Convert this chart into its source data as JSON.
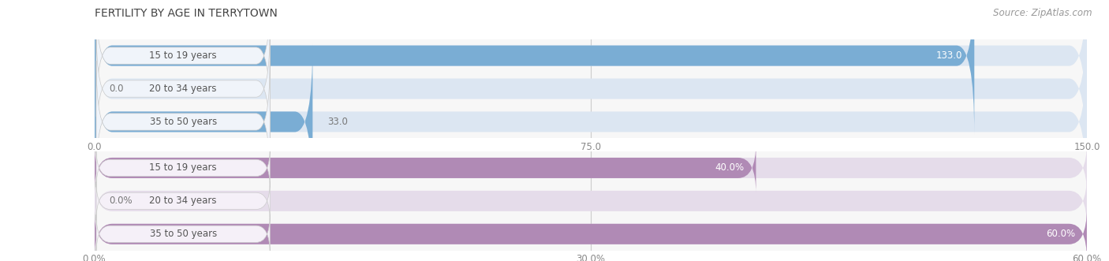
{
  "title": "FERTILITY BY AGE IN TERRYTOWN",
  "source": "Source: ZipAtlas.com",
  "top_section": {
    "categories": [
      "15 to 19 years",
      "20 to 34 years",
      "35 to 50 years"
    ],
    "values": [
      133.0,
      0.0,
      33.0
    ],
    "xlim": [
      0,
      150.0
    ],
    "xticks": [
      0.0,
      75.0,
      150.0
    ],
    "xtick_labels": [
      "0.0",
      "75.0",
      "150.0"
    ],
    "bar_color": "#7aadd4",
    "bar_bg_color": "#dce6f2",
    "label_pill_color": "#f0f4fa",
    "label_text_color": "#555555"
  },
  "bottom_section": {
    "categories": [
      "15 to 19 years",
      "20 to 34 years",
      "35 to 50 years"
    ],
    "values": [
      40.0,
      0.0,
      60.0
    ],
    "xlim": [
      0,
      60.0
    ],
    "xticks": [
      0.0,
      30.0,
      60.0
    ],
    "xtick_labels": [
      "0.0%",
      "30.0%",
      "60.0%"
    ],
    "bar_color": "#b08ab5",
    "bar_bg_color": "#e5dcea",
    "label_pill_color": "#f5f0f8",
    "label_text_color": "#555555"
  },
  "title_fontsize": 10,
  "source_fontsize": 8.5,
  "value_fontsize": 8.5,
  "tick_fontsize": 8.5,
  "category_fontsize": 8.5,
  "bar_height": 0.62,
  "title_color": "#444444",
  "tick_color": "#aaaaaa",
  "grid_color": "#cccccc",
  "bg_color": "#ffffff",
  "section_bg": "#f7f7f7"
}
